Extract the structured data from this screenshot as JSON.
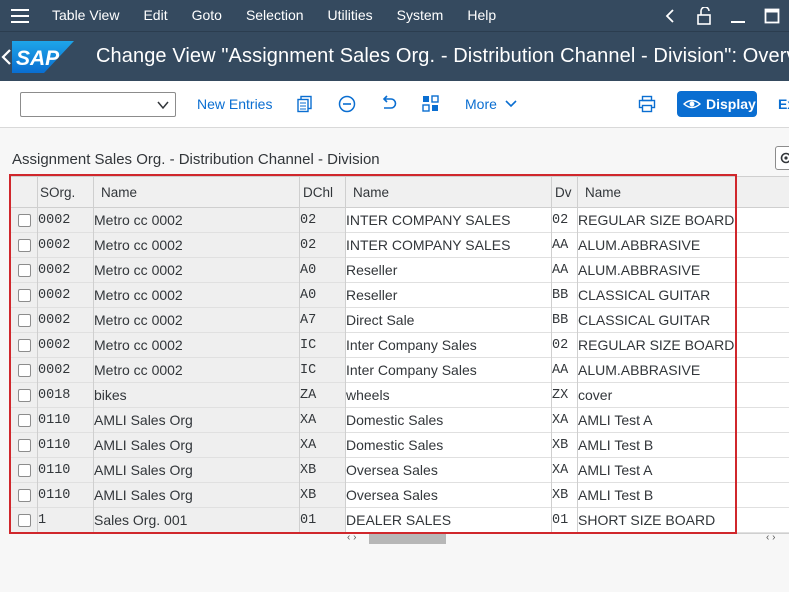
{
  "menubar": {
    "items": [
      "Table View",
      "Edit",
      "Goto",
      "Selection",
      "Utilities",
      "System",
      "Help"
    ]
  },
  "titlebar": {
    "logo_text": "SAP",
    "title": "Change View \"Assignment Sales Org. - Distribution Channel - Division\": Overview"
  },
  "toolbar": {
    "dropdown_value": "",
    "new_entries": "New Entries",
    "more": "More",
    "display": "Display",
    "exit_partial": "Ex"
  },
  "section": {
    "title": "Assignment Sales Org. - Distribution Channel - Division"
  },
  "table": {
    "headers": {
      "sorg": "SOrg.",
      "name1": "Name",
      "dchl": "DChl",
      "name2": "Name",
      "dv": "Dv",
      "name3": "Name"
    },
    "rows": [
      {
        "sorg": "0002",
        "name1": "Metro cc  0002",
        "dchl": "02",
        "name2": "INTER COMPANY SALES",
        "dv": "02",
        "name3": "REGULAR SIZE BOARD"
      },
      {
        "sorg": "0002",
        "name1": "Metro cc  0002",
        "dchl": "02",
        "name2": "INTER COMPANY SALES",
        "dv": "AA",
        "name3": "ALUM.ABBRASIVE"
      },
      {
        "sorg": "0002",
        "name1": "Metro cc  0002",
        "dchl": "A0",
        "name2": "Reseller",
        "dv": "AA",
        "name3": "ALUM.ABBRASIVE"
      },
      {
        "sorg": "0002",
        "name1": "Metro cc  0002",
        "dchl": "A0",
        "name2": "Reseller",
        "dv": "BB",
        "name3": "CLASSICAL GUITAR"
      },
      {
        "sorg": "0002",
        "name1": "Metro cc  0002",
        "dchl": "A7",
        "name2": "Direct Sale",
        "dv": "BB",
        "name3": "CLASSICAL GUITAR"
      },
      {
        "sorg": "0002",
        "name1": "Metro cc  0002",
        "dchl": "IC",
        "name2": "Inter Company Sales",
        "dv": "02",
        "name3": "REGULAR SIZE BOARD"
      },
      {
        "sorg": "0002",
        "name1": "Metro cc  0002",
        "dchl": "IC",
        "name2": "Inter Company Sales",
        "dv": "AA",
        "name3": "ALUM.ABBRASIVE"
      },
      {
        "sorg": "0018",
        "name1": "bikes",
        "dchl": "ZA",
        "name2": "wheels",
        "dv": "ZX",
        "name3": "cover"
      },
      {
        "sorg": "0110",
        "name1": "AMLI Sales Org",
        "dchl": "XA",
        "name2": "Domestic Sales",
        "dv": "XA",
        "name3": "AMLI Test A"
      },
      {
        "sorg": "0110",
        "name1": "AMLI Sales Org",
        "dchl": "XA",
        "name2": "Domestic Sales",
        "dv": "XB",
        "name3": "AMLI Test B"
      },
      {
        "sorg": "0110",
        "name1": "AMLI Sales Org",
        "dchl": "XB",
        "name2": "Oversea Sales",
        "dv": "XA",
        "name3": "AMLI Test A"
      },
      {
        "sorg": "0110",
        "name1": "AMLI Sales Org",
        "dchl": "XB",
        "name2": "Oversea Sales",
        "dv": "XB",
        "name3": "AMLI Test B"
      },
      {
        "sorg": "1",
        "name1": "Sales Org. 001",
        "dchl": "01",
        "name2": "DEALER SALES",
        "dv": "01",
        "name3": "SHORT SIZE BOARD"
      }
    ]
  },
  "colors": {
    "shell": "#354a5f",
    "accent": "#0a6ed1",
    "highlight_frame": "#d0272c"
  },
  "icons": [
    "hamburger-icon",
    "chevron-left-icon",
    "unlock-icon",
    "minimize-icon",
    "maximize-icon",
    "back-arrow-icon",
    "copy-icon",
    "minus-circle-icon",
    "undo-icon",
    "select-blocks-icon",
    "print-icon",
    "display-pencil-icon",
    "settings-gear-icon"
  ]
}
